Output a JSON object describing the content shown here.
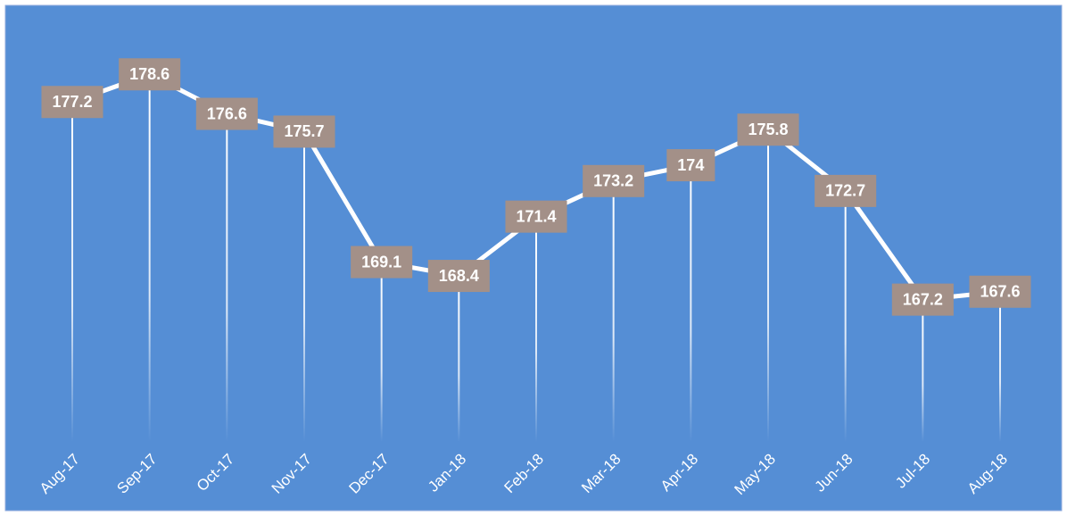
{
  "chart_data": {
    "type": "line",
    "categories": [
      "Aug-17",
      "Sep-17",
      "Oct-17",
      "Nov-17",
      "Dec-17",
      "Jan-18",
      "Feb-18",
      "Mar-18",
      "Apr-18",
      "May-18",
      "Jun-18",
      "Jul-18",
      "Aug-18"
    ],
    "values": [
      177.2,
      178.6,
      176.6,
      175.7,
      169.1,
      168.4,
      171.4,
      173.2,
      174,
      175.8,
      172.7,
      167.2,
      167.6
    ],
    "color": "#ffffff",
    "ylim": [
      160,
      182
    ]
  }
}
